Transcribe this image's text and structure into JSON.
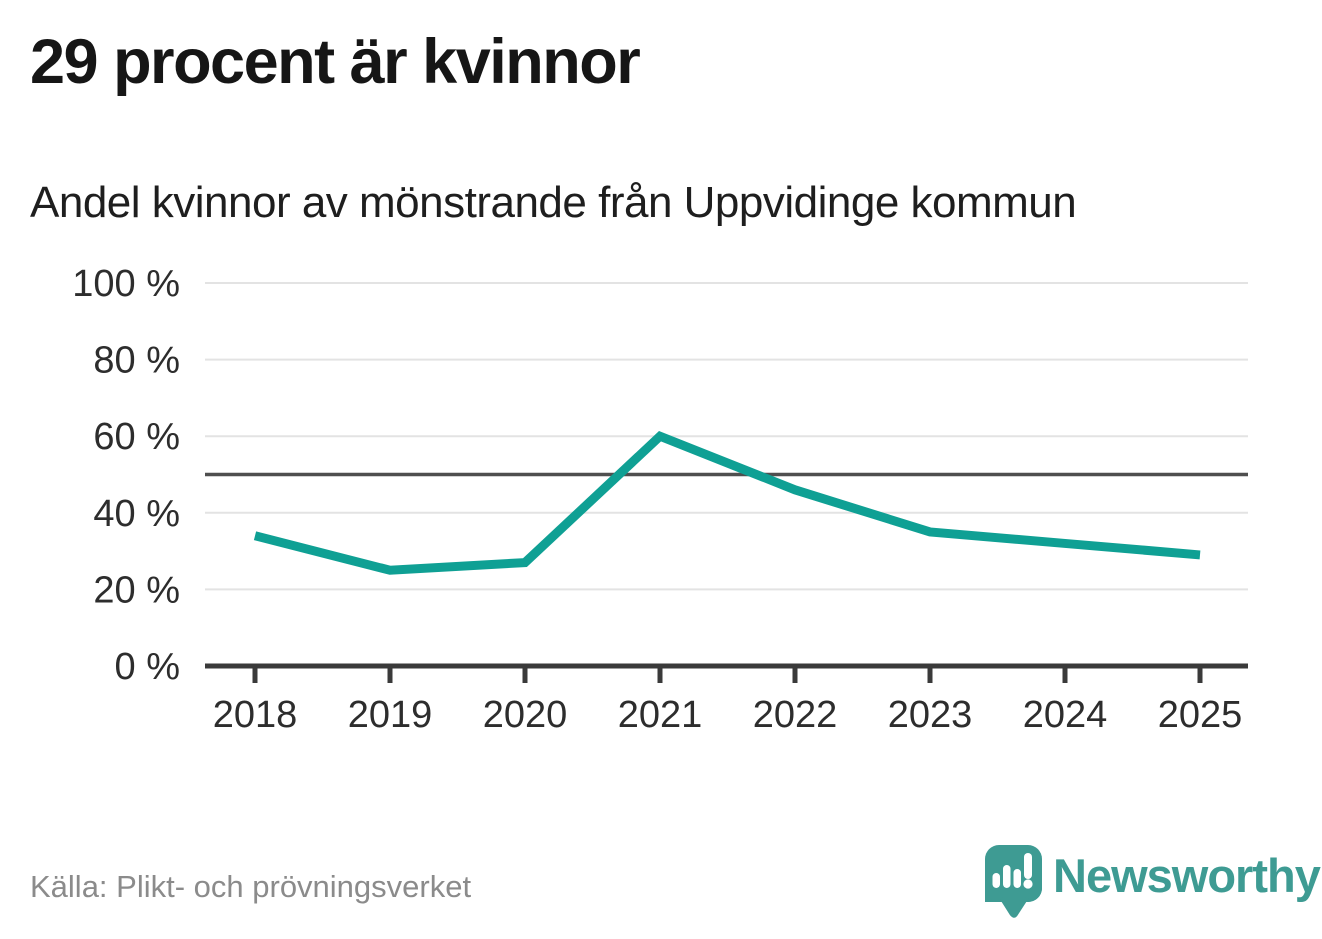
{
  "header": {
    "title": "29 procent är kvinnor",
    "subtitle": "Andel kvinnor av mönstrande från Uppvidinge kommun"
  },
  "footer": {
    "source": "Källa: Plikt- och prövningsverket",
    "brand": "Newsworthy"
  },
  "colors": {
    "line": "#0fa094",
    "reference_line": "#4f4f4f",
    "grid": "#e3e3e3",
    "axis": "#3a3a3a",
    "tick_text": "#2d2d2d",
    "brand_teal": "#3e9b93",
    "title_text": "#161616",
    "muted_text": "#8b8b8b"
  },
  "chart_data": {
    "type": "line",
    "title": "29 procent är kvinnor",
    "subtitle": "Andel kvinnor av mönstrande från Uppvidinge kommun",
    "categories": [
      "2018",
      "2019",
      "2020",
      "2021",
      "2022",
      "2023",
      "2024",
      "2025"
    ],
    "series": [
      {
        "name": "Andel kvinnor av mönstrande, Uppvidinge kommun",
        "values": [
          34,
          25,
          27,
          60,
          46,
          35,
          32,
          29
        ]
      }
    ],
    "unit": "%",
    "xlabel": "",
    "ylabel": "",
    "ylim": [
      0,
      100
    ],
    "yticks": [
      0,
      20,
      40,
      60,
      80,
      100
    ],
    "ytick_suffix": " %",
    "reference_line": 50,
    "grid": true,
    "legend_position": "none",
    "line_color": "#0fa094"
  }
}
